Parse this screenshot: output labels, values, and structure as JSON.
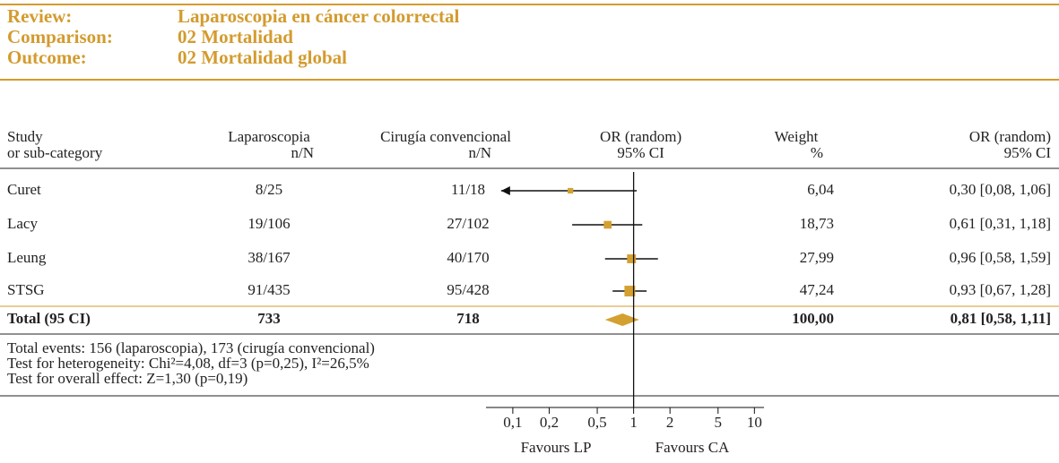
{
  "header": {
    "rows": [
      {
        "label": "Review:",
        "value": "Laparoscopia en cáncer colorrectal"
      },
      {
        "label": "Comparison:",
        "value": "02 Mortalidad"
      },
      {
        "label": "Outcome:",
        "value": "02 Mortalidad global"
      }
    ]
  },
  "chart_data": {
    "type": "forest",
    "columns": {
      "study": [
        "Study",
        "or sub-category"
      ],
      "lap": [
        "Laparoscopia",
        "n/N"
      ],
      "conv": [
        "Cirugía convencional",
        "n/N"
      ],
      "plot": [
        "OR (random)",
        "95% CI"
      ],
      "weight": [
        "Weight",
        "%"
      ],
      "or": [
        "OR (random)",
        "95% CI"
      ]
    },
    "studies": [
      {
        "name": "Curet",
        "lap": "8/25",
        "conv": "11/18",
        "weight": 6.04,
        "weight_label": "6,04",
        "or": 0.3,
        "ci": [
          0.08,
          1.06
        ],
        "or_label": "0,30 [0,08, 1,06]"
      },
      {
        "name": "Lacy",
        "lap": "19/106",
        "conv": "27/102",
        "weight": 18.73,
        "weight_label": "18,73",
        "or": 0.61,
        "ci": [
          0.31,
          1.18
        ],
        "or_label": "0,61 [0,31, 1,18]"
      },
      {
        "name": "Leung",
        "lap": "38/167",
        "conv": "40/170",
        "weight": 27.99,
        "weight_label": "27,99",
        "or": 0.96,
        "ci": [
          0.58,
          1.59
        ],
        "or_label": "0,96 [0,58, 1,59]"
      },
      {
        "name": "STSG",
        "lap": "91/435",
        "conv": "95/428",
        "weight": 47.24,
        "weight_label": "47,24",
        "or": 0.93,
        "ci": [
          0.67,
          1.28
        ],
        "or_label": "0,93 [0,67, 1,28]"
      }
    ],
    "total": {
      "name": "Total (95 CI)",
      "lap": "733",
      "conv": "718",
      "weight": 100,
      "weight_label": "100,00",
      "or": 0.81,
      "ci": [
        0.58,
        1.11
      ],
      "or_label": "0,81 [0,58, 1,11]"
    },
    "notes": [
      "Total events: 156 (laparoscopia), 173 (cirugía convencional)",
      "Test for heterogeneity: Chi²=4,08, df=3 (p=0,25), I²=26,5%",
      "Test for overall effect: Z=1,30 (p=0,19)"
    ],
    "xlim": [
      0.06,
      12
    ],
    "log": true,
    "ref_line": 1,
    "xticks": [
      {
        "value": 0.1,
        "label": "0,1"
      },
      {
        "value": 0.2,
        "label": "0,2"
      },
      {
        "value": 0.5,
        "label": "0,5"
      },
      1,
      2,
      5,
      10
    ],
    "favours": [
      "Favours LP",
      "Favours CA"
    ],
    "color": "#d4a030"
  }
}
